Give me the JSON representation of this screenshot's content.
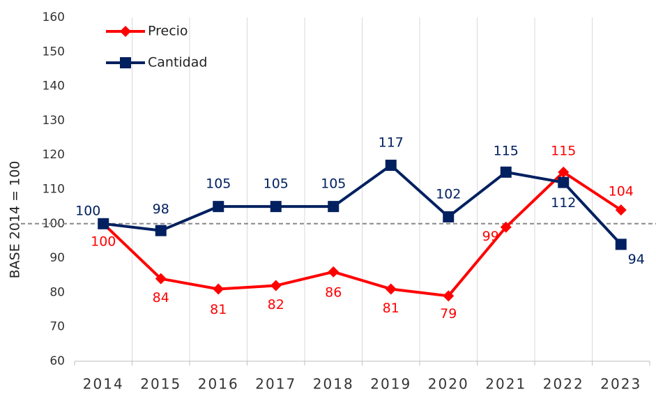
{
  "chart_data": {
    "type": "line",
    "y_label": "BASE 2014 = 100",
    "categories": [
      "2014",
      "2015",
      "2016",
      "2017",
      "2018",
      "2019",
      "2020",
      "2021",
      "2022",
      "2023"
    ],
    "series": [
      {
        "name": "Precio",
        "color": "#ff0000",
        "marker": "diamond",
        "values": [
          100,
          84,
          81,
          82,
          86,
          81,
          79,
          99,
          115,
          104
        ]
      },
      {
        "name": "Cantidad",
        "color": "#002060",
        "marker": "square",
        "values": [
          100,
          98,
          105,
          105,
          105,
          117,
          102,
          115,
          112,
          94
        ]
      }
    ],
    "ylim": [
      60,
      160
    ],
    "yticks": [
      60,
      70,
      80,
      90,
      100,
      110,
      120,
      130,
      140,
      150,
      160
    ],
    "reference_line": 100,
    "grid": true,
    "legend": "top-left"
  }
}
